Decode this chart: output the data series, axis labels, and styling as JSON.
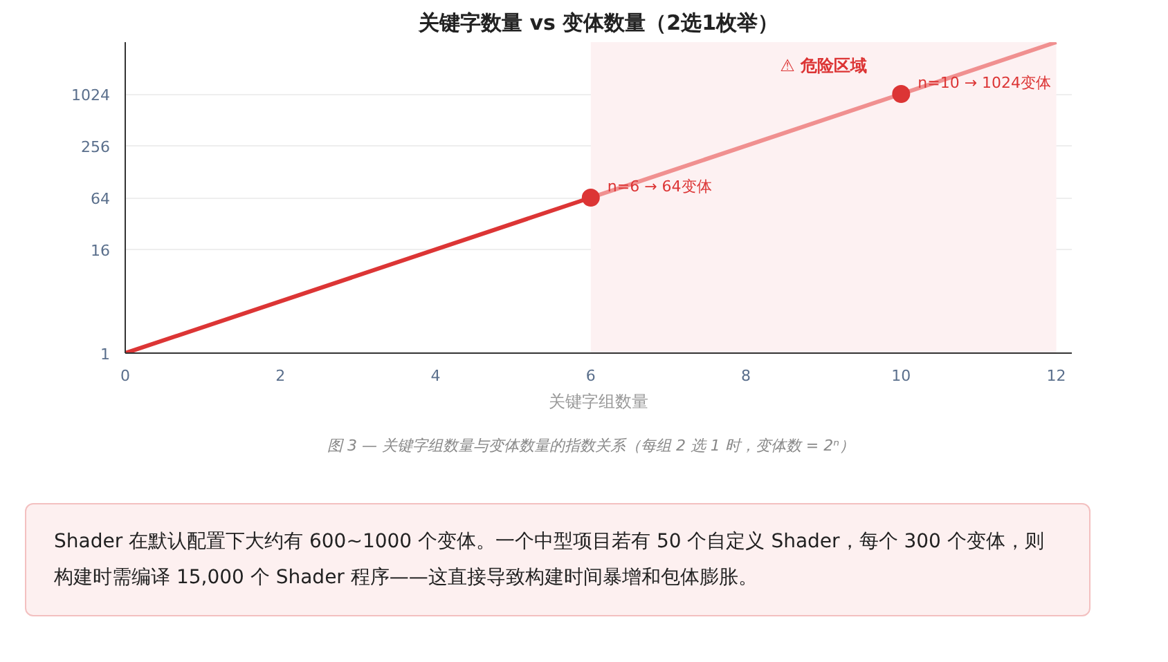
{
  "chart_data": {
    "type": "line",
    "title": "关键字数量 vs 变体数量（2选1枚举）",
    "xlabel": "关键字组数量",
    "xlim": [
      0,
      12.2
    ],
    "ylim": [
      1,
      4096
    ],
    "xticks": [
      0,
      2,
      4,
      6,
      8,
      10,
      12
    ],
    "yticks": [
      1,
      16,
      64,
      256,
      1024
    ],
    "log": "y",
    "grid": "y",
    "line_style": "solid",
    "series": [
      {
        "color": "#dc3535",
        "x": [
          0,
          6
        ],
        "values": [
          1,
          64
        ]
      },
      {
        "color": "#f09090",
        "x": [
          6,
          12
        ],
        "values": [
          64,
          4096
        ]
      },
      {
        "type": "scatter",
        "color": "#dc3535",
        "marker": "circle",
        "x": [
          6,
          10
        ],
        "values": [
          64,
          1024
        ]
      }
    ],
    "bands": [
      {
        "axis": "x",
        "from": 6,
        "to": 12,
        "label": "⚠ 危险区域",
        "color": "#fdf1f2"
      }
    ],
    "annotations": [
      {
        "text": "n=6 → 64变体",
        "x": 6,
        "y": 64
      },
      {
        "text": "n=10 → 1024变体",
        "x": 10,
        "y": 1024
      },
      "图 3 — 关键字组数量与变体数量的指数关系（每组 2 选 1 时，变体数 = 2ⁿ）",
      "Shader 在默认配置下大约有 600~1000 个变体。一个中型项目若有 50 个自定义 Shader，每个 300 个变体，则构建时需编译 15,000 个 Shader 程序——这直接导致构建时间暴增和包体膨胀。"
    ]
  }
}
